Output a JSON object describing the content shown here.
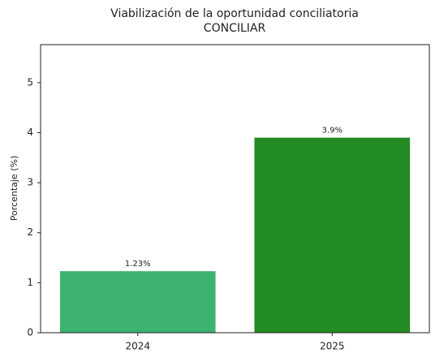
{
  "chart_data": {
    "type": "bar",
    "title": "Viabilización de la oportunidad conciliatoria",
    "subtitle": "CONCILIAR",
    "y_label": "Porcentaje (%)",
    "categories": [
      "2024",
      "2025"
    ],
    "values": [
      1.23,
      3.9
    ],
    "value_labels": [
      "1.23%",
      "3.9%"
    ],
    "colors": [
      "#3cb371",
      "#228b22"
    ],
    "ylim": [
      0,
      5.76
    ],
    "yticks": [
      0,
      1,
      2,
      3,
      4,
      5
    ],
    "grid": false
  }
}
